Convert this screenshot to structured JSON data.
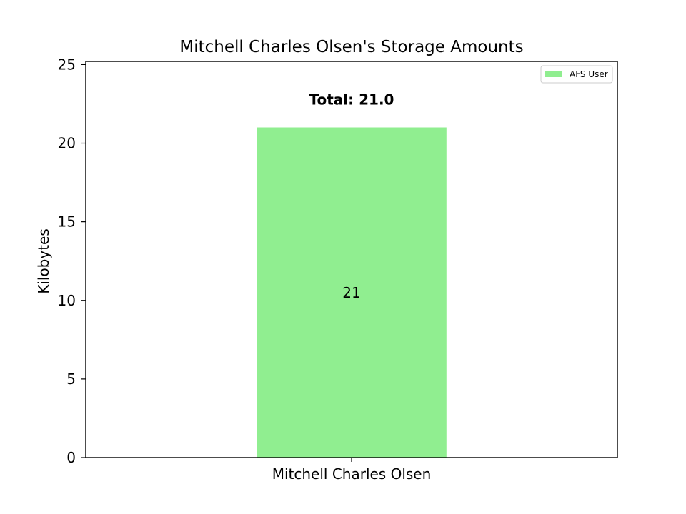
{
  "chart_data": {
    "type": "bar",
    "title": "Mitchell Charles Olsen's Storage Amounts",
    "xlabel": "",
    "ylabel": "Kilobytes",
    "categories": [
      "Mitchell Charles Olsen"
    ],
    "series": [
      {
        "name": "AFS User",
        "values": [
          21
        ],
        "value_labels": [
          "21"
        ],
        "color": "#90ee90"
      }
    ],
    "total_label": "Total: 21.0",
    "ylim": [
      0,
      25.2
    ],
    "yticks": [
      0,
      5,
      10,
      15,
      20,
      25
    ],
    "ytick_labels": [
      "0",
      "5",
      "10",
      "15",
      "20",
      "25"
    ],
    "grid": false,
    "legend_position": "top-right"
  }
}
